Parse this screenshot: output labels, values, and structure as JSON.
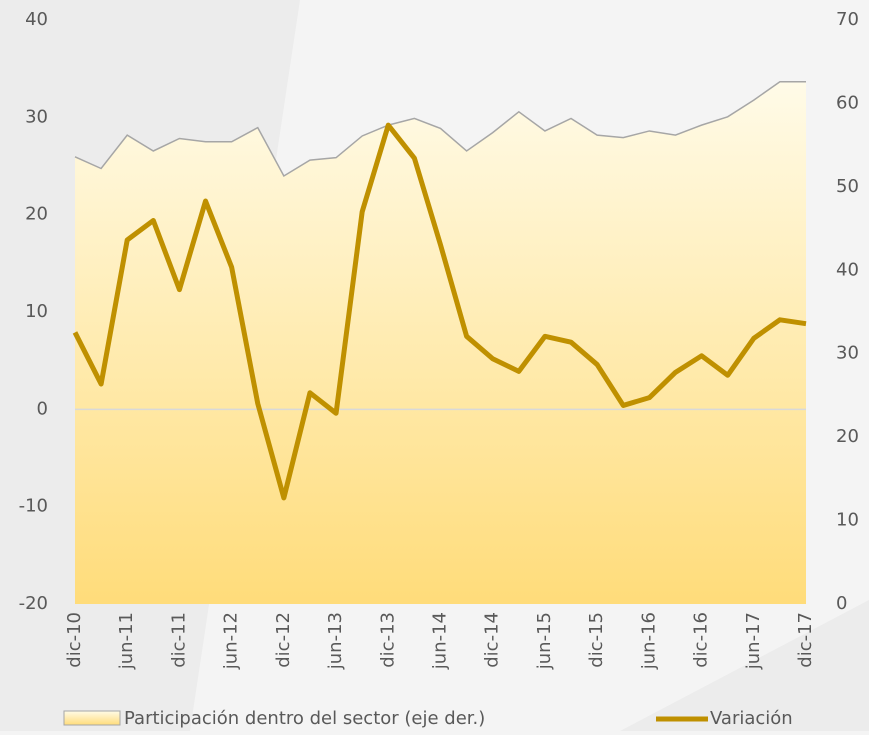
{
  "chart_data": {
    "type": "line",
    "categories": [
      "dic-10",
      null,
      "jun-11",
      null,
      "dic-11",
      null,
      "jun-12",
      null,
      "dic-12",
      null,
      "jun-13",
      null,
      "dic-13",
      null,
      "jun-14",
      null,
      "dic-14",
      null,
      "jun-15",
      null,
      "dic-15",
      null,
      "jun-16",
      null,
      "dic-16",
      null,
      "jun-17",
      null,
      "dic-17"
    ],
    "series": [
      {
        "name": "Participación dentro del sector (eje der.)",
        "type": "area",
        "axis": "y2",
        "color": "#a6a6a6",
        "values": [
          53.6,
          52.2,
          56.2,
          54.3,
          55.8,
          55.4,
          55.4,
          57.1,
          51.3,
          53.2,
          53.5,
          56.1,
          57.4,
          58.2,
          57.0,
          54.3,
          56.5,
          59.0,
          56.7,
          58.2,
          56.2,
          55.9,
          56.7,
          56.2,
          57.4,
          58.4,
          60.4,
          62.6,
          62.6
        ]
      },
      {
        "name": "Variación",
        "type": "line",
        "color": "#bf9000",
        "values": [
          7.9,
          2.6,
          17.4,
          19.4,
          12.3,
          21.4,
          14.6,
          0.6,
          -9.1,
          1.7,
          -0.4,
          20.3,
          29.2,
          25.8,
          16.9,
          7.5,
          5.2,
          3.9,
          7.5,
          6.9,
          4.6,
          0.4,
          1.2,
          3.8,
          5.5,
          3.5,
          7.3,
          9.2,
          8.8
        ]
      }
    ],
    "ylim": [
      -20,
      40
    ],
    "yticks": [
      -20,
      -10,
      0,
      10,
      20,
      30,
      40
    ],
    "y2lim": [
      0,
      70
    ],
    "y2ticks": [
      0,
      10,
      20,
      30,
      40,
      50,
      60,
      70
    ]
  }
}
